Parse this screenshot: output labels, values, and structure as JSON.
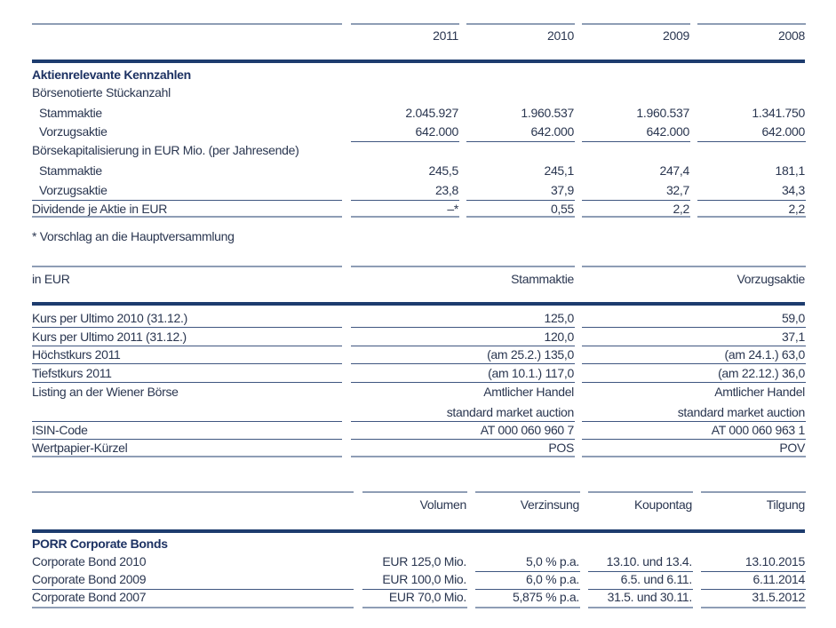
{
  "table1": {
    "headers": [
      "2011",
      "2010",
      "2009",
      "2008"
    ],
    "title": "Aktienrelevante Kennzahlen",
    "rows": [
      {
        "label": "Börsenotierte Stückanzahl",
        "values": []
      },
      {
        "label": "Stammaktie",
        "indent": true,
        "values": [
          "2.045.927",
          "1.960.537",
          "1.960.537",
          "1.341.750"
        ]
      },
      {
        "label": "Vorzugsaktie",
        "indent": true,
        "values": [
          "642.000",
          "642.000",
          "642.000",
          "642.000"
        ]
      },
      {
        "label": "Börsekapitalisierung in EUR Mio. (per Jahresende)",
        "values": []
      },
      {
        "label": "Stammaktie",
        "indent": true,
        "values": [
          "245,5",
          "245,1",
          "247,4",
          "181,1"
        ]
      },
      {
        "label": "Vorzugsaktie",
        "indent": true,
        "values": [
          "23,8",
          "37,9",
          "32,7",
          "34,3"
        ]
      },
      {
        "label": "Dividende je Aktie in EUR",
        "values": [
          "–*",
          "0,55",
          "2,2",
          "2,2"
        ]
      }
    ],
    "footnote": "* Vorschlag an die Hauptversammlung"
  },
  "table2": {
    "label_header": "in EUR",
    "headers": [
      "Stammaktie",
      "Vorzugsaktie"
    ],
    "rows": [
      {
        "label": "Kurs per Ultimo 2010 (31.12.)",
        "values": [
          "125,0",
          "59,0"
        ]
      },
      {
        "label": "Kurs per Ultimo 2011 (31.12.)",
        "values": [
          "120,0",
          "37,1"
        ]
      },
      {
        "label": "Höchstkurs 2011",
        "values": [
          "(am 25.2.) 135,0",
          "(am 24.1.) 63,0"
        ]
      },
      {
        "label": "Tiefstkurs 2011",
        "values": [
          "(am 10.1.) 117,0",
          "(am 22.12.) 36,0"
        ]
      },
      {
        "label": "Listing an der Wiener Börse",
        "values": [
          "Amtlicher Handel",
          "Amtlicher Handel"
        ]
      },
      {
        "label": "",
        "values": [
          "standard market auction",
          "standard market auction"
        ]
      },
      {
        "label": "ISIN-Code",
        "values": [
          "AT 000 060 960 7",
          "AT 000 060 963 1"
        ]
      },
      {
        "label": "Wertpapier-Kürzel",
        "values": [
          "POS",
          "POV"
        ]
      }
    ]
  },
  "table3": {
    "headers": [
      "Volumen",
      "Verzinsung",
      "Koupontag",
      "Tilgung"
    ],
    "title": "PORR Corporate Bonds",
    "rows": [
      {
        "label": "Corporate Bond 2010",
        "values": [
          "EUR 125,0 Mio.",
          "5,0 % p.a.",
          "13.10. und 13.4.",
          "13.10.2015"
        ]
      },
      {
        "label": "Corporate Bond 2009",
        "values": [
          "EUR 100,0 Mio.",
          "6,0 % p.a.",
          "6.5. und 6.11.",
          "6.11.2014"
        ]
      },
      {
        "label": "Corporate Bond 2007",
        "values": [
          "EUR 70,0 Mio.",
          "5,875 % p.a.",
          "31.5. und 30.11.",
          "31.5.2012"
        ]
      }
    ]
  },
  "colors": {
    "text": "#2a3650",
    "accent": "#1d3c6e",
    "light_rule": "#8e9db5"
  }
}
